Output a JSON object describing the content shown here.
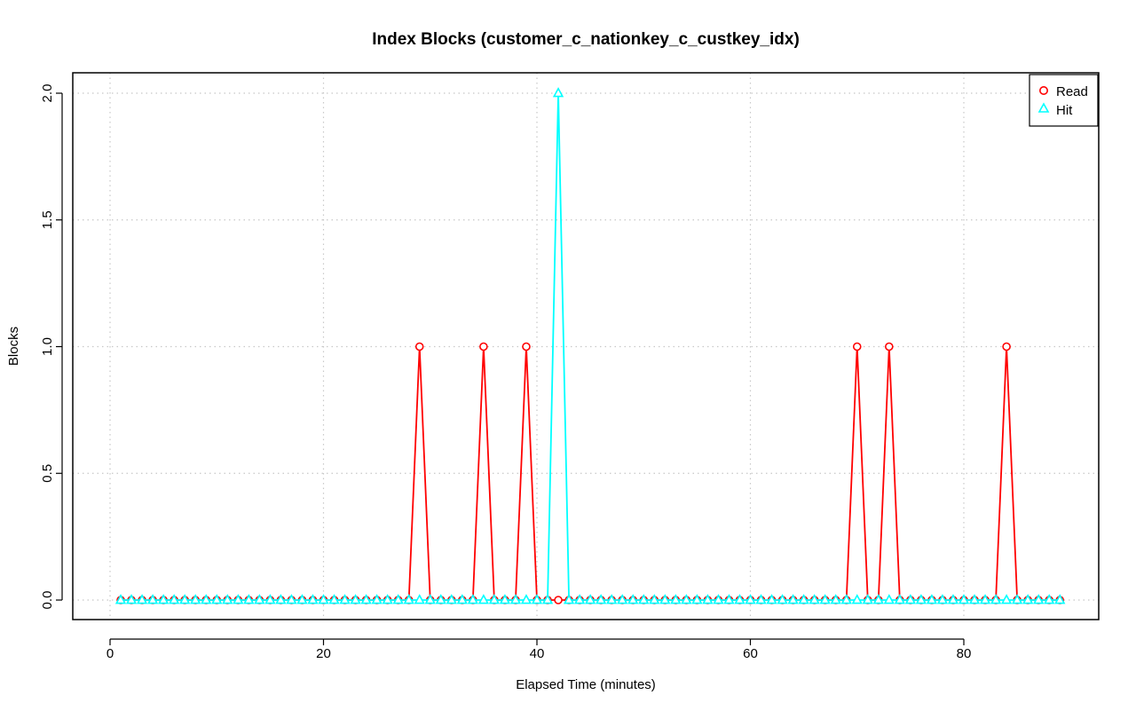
{
  "chart_data": {
    "type": "line",
    "title": "Index Blocks (customer_c_nationkey_c_custkey_idx)",
    "xlabel": "Elapsed Time (minutes)",
    "ylabel": "Blocks",
    "xlim": [
      1,
      89
    ],
    "ylim": [
      0,
      2
    ],
    "x_ticks": [
      0,
      20,
      40,
      60,
      80
    ],
    "y_ticks": [
      0.0,
      0.5,
      1.0,
      1.5,
      2.0
    ],
    "x_tick_labels": [
      "0",
      "20",
      "40",
      "60",
      "80"
    ],
    "y_tick_labels": [
      "0.0",
      "0.5",
      "1.0",
      "1.5",
      "2.0"
    ],
    "grid": true,
    "legend_position": "top-right",
    "x": [
      1,
      2,
      3,
      4,
      5,
      6,
      7,
      8,
      9,
      10,
      11,
      12,
      13,
      14,
      15,
      16,
      17,
      18,
      19,
      20,
      21,
      22,
      23,
      24,
      25,
      26,
      27,
      28,
      29,
      30,
      31,
      32,
      33,
      34,
      35,
      36,
      37,
      38,
      39,
      40,
      41,
      42,
      43,
      44,
      45,
      46,
      47,
      48,
      49,
      50,
      51,
      52,
      53,
      54,
      55,
      56,
      57,
      58,
      59,
      60,
      61,
      62,
      63,
      64,
      65,
      66,
      67,
      68,
      69,
      70,
      71,
      72,
      73,
      74,
      75,
      76,
      77,
      78,
      79,
      80,
      81,
      82,
      83,
      84,
      85,
      86,
      87,
      88,
      89
    ],
    "series": [
      {
        "name": "Read",
        "color": "#ff0000",
        "marker": "circle",
        "values": [
          0,
          0,
          0,
          0,
          0,
          0,
          0,
          0,
          0,
          0,
          0,
          0,
          0,
          0,
          0,
          0,
          0,
          0,
          0,
          0,
          0,
          0,
          0,
          0,
          0,
          0,
          0,
          0,
          1,
          0,
          0,
          0,
          0,
          0,
          1,
          0,
          0,
          0,
          1,
          0,
          0,
          0,
          0,
          0,
          0,
          0,
          0,
          0,
          0,
          0,
          0,
          0,
          0,
          0,
          0,
          0,
          0,
          0,
          0,
          0,
          0,
          0,
          0,
          0,
          0,
          0,
          0,
          0,
          0,
          1,
          0,
          0,
          1,
          0,
          0,
          0,
          0,
          0,
          0,
          0,
          0,
          0,
          0,
          1,
          0,
          0,
          0,
          0,
          0
        ]
      },
      {
        "name": "Hit",
        "color": "#00ffff",
        "marker": "triangle",
        "values": [
          0,
          0,
          0,
          0,
          0,
          0,
          0,
          0,
          0,
          0,
          0,
          0,
          0,
          0,
          0,
          0,
          0,
          0,
          0,
          0,
          0,
          0,
          0,
          0,
          0,
          0,
          0,
          0,
          0,
          0,
          0,
          0,
          0,
          0,
          0,
          0,
          0,
          0,
          0,
          0,
          0,
          2,
          0,
          0,
          0,
          0,
          0,
          0,
          0,
          0,
          0,
          0,
          0,
          0,
          0,
          0,
          0,
          0,
          0,
          0,
          0,
          0,
          0,
          0,
          0,
          0,
          0,
          0,
          0,
          0,
          0,
          0,
          0,
          0,
          0,
          0,
          0,
          0,
          0,
          0,
          0,
          0,
          0,
          0,
          0,
          0,
          0,
          0,
          0
        ]
      }
    ]
  }
}
